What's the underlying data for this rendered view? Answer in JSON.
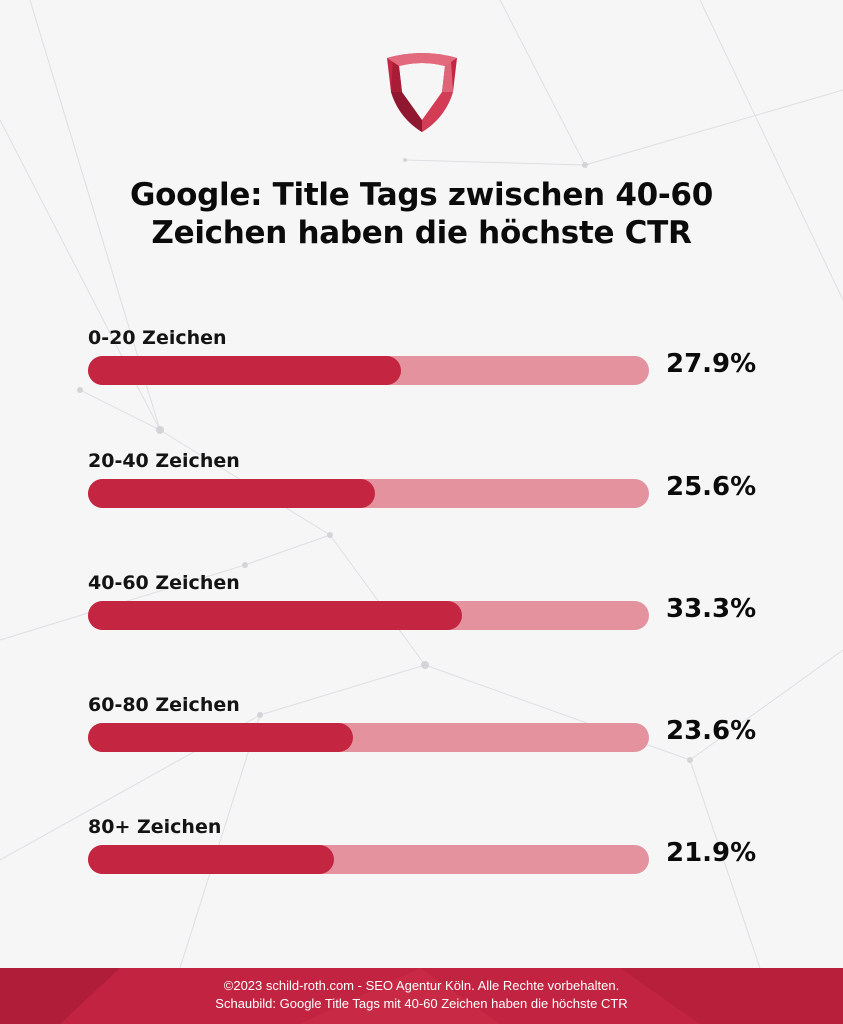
{
  "header": {
    "title_line1": "Google: Title Tags zwischen 40-60",
    "title_line2": "Zeichen haben die höchste CTR"
  },
  "colors": {
    "bar_fill": "#c42541",
    "bar_track": "#e4939e",
    "footer": "#c22340"
  },
  "chart_data": {
    "type": "bar",
    "orientation": "horizontal",
    "categories": [
      "0-20 Zeichen",
      "20-40 Zeichen",
      "40-60 Zeichen",
      "60-80 Zeichen",
      "80+ Zeichen"
    ],
    "values": [
      27.9,
      25.6,
      33.3,
      23.6,
      21.9
    ],
    "value_labels": [
      "27.9%",
      "25.6%",
      "33.3%",
      "23.6%",
      "21.9%"
    ],
    "unit": "%",
    "xlim": [
      0,
      50
    ],
    "title": "Google: Title Tags zwischen 40-60 Zeichen haben die höchste CTR",
    "xlabel": "",
    "ylabel": "",
    "grid": false
  },
  "footer": {
    "line1": "©2023 schild-roth.com - SEO Agentur Köln. Alle Rechte vorbehalten.",
    "line2": "Schaubild: Google Title Tags mit 40-60 Zeichen haben die höchste CTR"
  }
}
